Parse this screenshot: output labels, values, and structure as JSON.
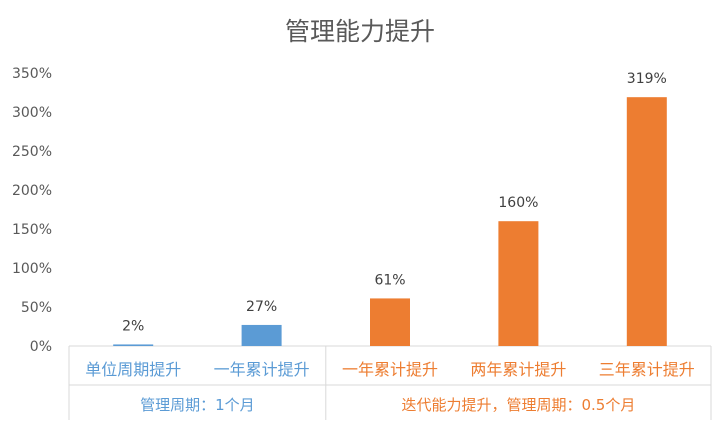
{
  "chart_data": {
    "type": "bar",
    "title": "管理能力提升",
    "xlabel": "",
    "ylabel": "",
    "ylim": [
      0,
      3.5
    ],
    "ytick_step": 0.5,
    "ytick_labels": [
      "0%",
      "50%",
      "100%",
      "150%",
      "200%",
      "250%",
      "300%",
      "350%"
    ],
    "categories": [
      "单位周期提升",
      "一年累计提升",
      "一年累计提升",
      "两年累计提升",
      "三年累计提升"
    ],
    "values": [
      0.02,
      0.27,
      0.61,
      1.6,
      3.19
    ],
    "data_labels": [
      "2%",
      "27%",
      "61%",
      "160%",
      "319%"
    ],
    "groups": [
      {
        "label": "管理周期：1个月",
        "start": 0,
        "count": 2,
        "color": "#5B9BD5"
      },
      {
        "label": "迭代能力提升，管理周期：0.5个月",
        "start": 2,
        "count": 3,
        "color": "#ED7D31"
      }
    ],
    "grid": false,
    "legend": "none"
  },
  "colors": {
    "blue": "#5B9BD5",
    "orange": "#ED7D31",
    "axis": "#D9D9D9",
    "text": "#595959"
  }
}
